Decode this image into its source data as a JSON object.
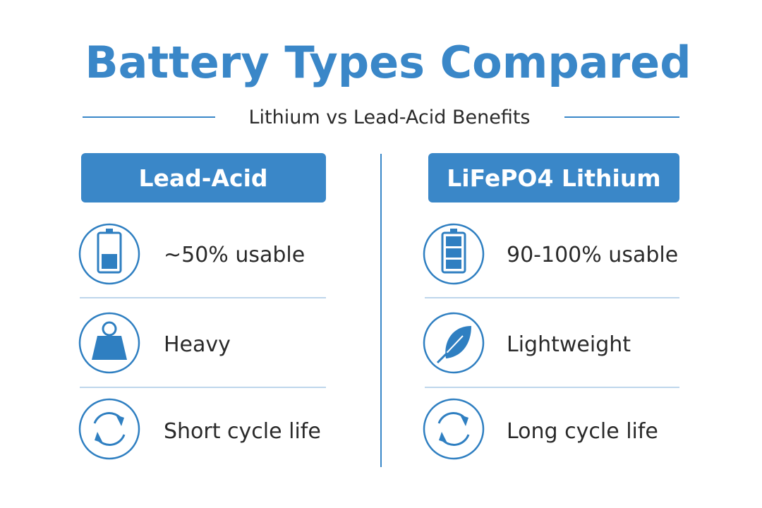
{
  "header": {
    "title": "Battery Types Compared",
    "subtitle": "Lithium vs Lead-Acid Benefits"
  },
  "columns": [
    {
      "heading": "Lead-Acid",
      "items": [
        {
          "text": "~50% usable"
        },
        {
          "text": "Heavy"
        },
        {
          "text": "Short cycle life"
        }
      ]
    },
    {
      "heading": "LiFePO4 Lithium",
      "items": [
        {
          "text": "90-100% usable"
        },
        {
          "text": "Lightweight"
        },
        {
          "text": "Long cycle life"
        }
      ]
    }
  ]
}
